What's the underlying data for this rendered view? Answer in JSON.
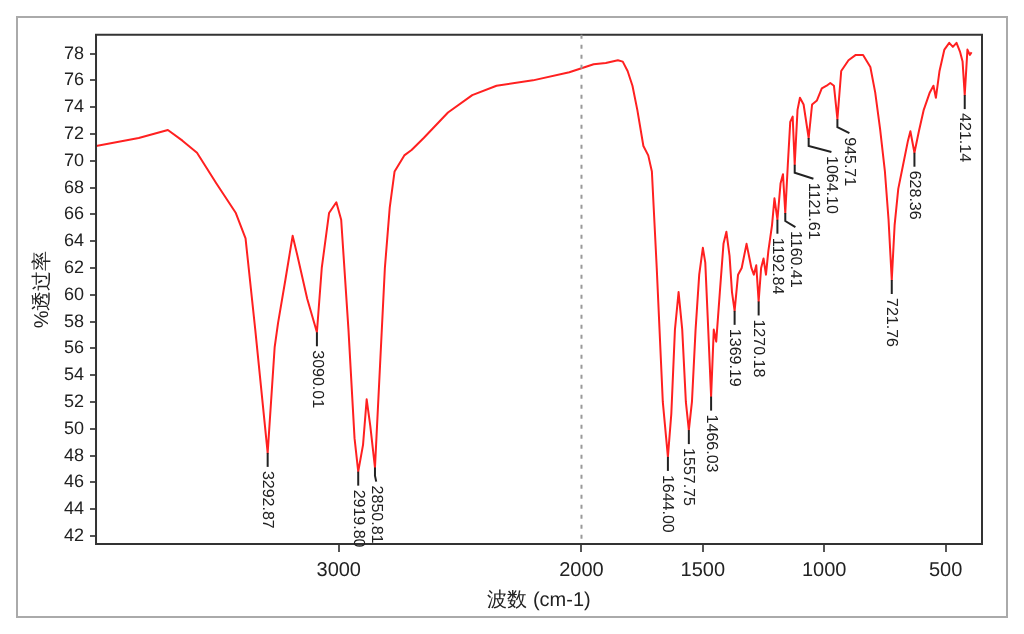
{
  "chart_data": {
    "type": "line",
    "xlabel": "波数 (cm-1)",
    "ylabel": "%透过率",
    "xlim": [
      4000,
      350
    ],
    "xticks": [
      3000,
      2000,
      1500,
      1000,
      500
    ],
    "ylim": [
      41.4,
      79.4
    ],
    "yticks": [
      42,
      44,
      46,
      48,
      50,
      52,
      54,
      56,
      58,
      60,
      62,
      64,
      66,
      68,
      70,
      72,
      74,
      76,
      78
    ],
    "grid": false,
    "legend": false,
    "marker": "none",
    "line_style": "solid",
    "ref_lines": [
      {
        "axis": "x",
        "value": 2000,
        "line_style": "dotted",
        "color": "#999999"
      }
    ],
    "series": [
      {
        "color": "#ff2020",
        "x": [
          4000,
          3824,
          3704,
          3644,
          3584,
          3504,
          3424,
          3384,
          3344,
          3292.87,
          3264,
          3250,
          3220,
          3190,
          3170,
          3130,
          3090.01,
          3070,
          3040,
          3010,
          2990,
          2960,
          2935,
          2919.8,
          2900,
          2885,
          2870,
          2850.81,
          2830,
          2810,
          2790,
          2770,
          2730,
          2700,
          2650,
          2550,
          2450,
          2350,
          2200,
          2050,
          2000,
          1950,
          1900,
          1850,
          1830,
          1810,
          1790,
          1770,
          1745,
          1725,
          1710,
          1690,
          1665,
          1644,
          1630,
          1615,
          1600,
          1585,
          1570,
          1557.75,
          1545,
          1530,
          1515,
          1500,
          1490,
          1480,
          1466.03,
          1455,
          1445,
          1430,
          1415,
          1403,
          1390,
          1380,
          1369.19,
          1355,
          1340,
          1320,
          1300,
          1290,
          1280,
          1270.18,
          1260,
          1250,
          1240,
          1230,
          1215,
          1205,
          1192.84,
          1180,
          1170,
          1160.41,
          1150,
          1140,
          1130,
          1121.61,
          1110,
          1100,
          1085,
          1064.1,
          1050,
          1030,
          1010,
          990,
          975,
          960,
          945.71,
          930,
          900,
          870,
          840,
          810,
          790,
          770,
          750,
          735,
          721.76,
          710,
          695,
          675,
          655,
          645,
          628.36,
          610,
          590,
          565,
          550,
          540,
          525,
          505,
          485,
          470,
          455,
          440,
          430,
          421.14,
          410,
          400,
          393
        ],
        "values": [
          71.1,
          71.7,
          72.3,
          71.5,
          70.6,
          68.3,
          66.1,
          64.2,
          57.4,
          48.2,
          56.1,
          57.9,
          61.1,
          64.4,
          62.9,
          59.7,
          57.2,
          62.0,
          66.1,
          66.9,
          65.6,
          57.4,
          49.3,
          46.8,
          48.8,
          52.2,
          50.2,
          47.1,
          54.7,
          62.0,
          66.5,
          69.2,
          70.4,
          70.8,
          71.7,
          73.6,
          74.9,
          75.6,
          76.0,
          76.6,
          76.9,
          77.2,
          77.3,
          77.5,
          77.4,
          76.7,
          75.6,
          73.8,
          71.1,
          70.4,
          69.2,
          62.0,
          52.0,
          47.9,
          51.1,
          57.4,
          60.2,
          57.4,
          52.0,
          49.9,
          52.0,
          57.4,
          61.5,
          63.5,
          62.4,
          58.3,
          52.4,
          57.4,
          56.5,
          60.2,
          63.8,
          64.7,
          62.9,
          60.2,
          58.8,
          61.5,
          62.0,
          63.8,
          62.0,
          61.5,
          62.2,
          59.5,
          62.0,
          62.7,
          61.5,
          63.3,
          65.2,
          67.2,
          65.6,
          68.3,
          69.0,
          66.1,
          69.7,
          72.9,
          73.3,
          69.7,
          73.8,
          74.7,
          74.2,
          71.7,
          74.2,
          74.5,
          75.4,
          75.6,
          75.8,
          75.6,
          73.1,
          76.7,
          77.5,
          77.9,
          77.9,
          77.0,
          75.1,
          72.4,
          69.2,
          65.6,
          61.1,
          65.2,
          67.9,
          69.7,
          71.5,
          72.2,
          70.6,
          72.2,
          73.8,
          75.1,
          75.6,
          74.7,
          76.7,
          78.3,
          78.8,
          78.5,
          78.8,
          78.1,
          77.4,
          74.9,
          78.3,
          77.9,
          78.1
        ]
      }
    ],
    "annotations": [
      {
        "text": "3292.87",
        "x": 3292.87,
        "y": 48.2
      },
      {
        "text": "3090.01",
        "x": 3090.01,
        "y": 57.2
      },
      {
        "text": "2919.80",
        "x": 2919.8,
        "y": 46.8
      },
      {
        "text": "2850.81",
        "x": 2850.81,
        "y": 47.1
      },
      {
        "text": "1644.00",
        "x": 1644,
        "y": 47.9
      },
      {
        "text": "1557.75",
        "x": 1557.75,
        "y": 49.9
      },
      {
        "text": "1466.03",
        "x": 1466.03,
        "y": 52.4
      },
      {
        "text": "1369.19",
        "x": 1369.19,
        "y": 58.8
      },
      {
        "text": "1270.18",
        "x": 1270.18,
        "y": 59.5
      },
      {
        "text": "1192.84",
        "x": 1192.84,
        "y": 65.6
      },
      {
        "text": "1160.41",
        "x": 1160.41,
        "y": 66.1
      },
      {
        "text": "1121.61",
        "x": 1121.61,
        "y": 69.7
      },
      {
        "text": "1064.10",
        "x": 1064.1,
        "y": 71.7
      },
      {
        "text": "945.71",
        "x": 945.71,
        "y": 73.1
      },
      {
        "text": "721.76",
        "x": 721.76,
        "y": 61.1
      },
      {
        "text": "628.36",
        "x": 628.36,
        "y": 70.6
      },
      {
        "text": "421.14",
        "x": 421.14,
        "y": 74.9
      }
    ]
  }
}
